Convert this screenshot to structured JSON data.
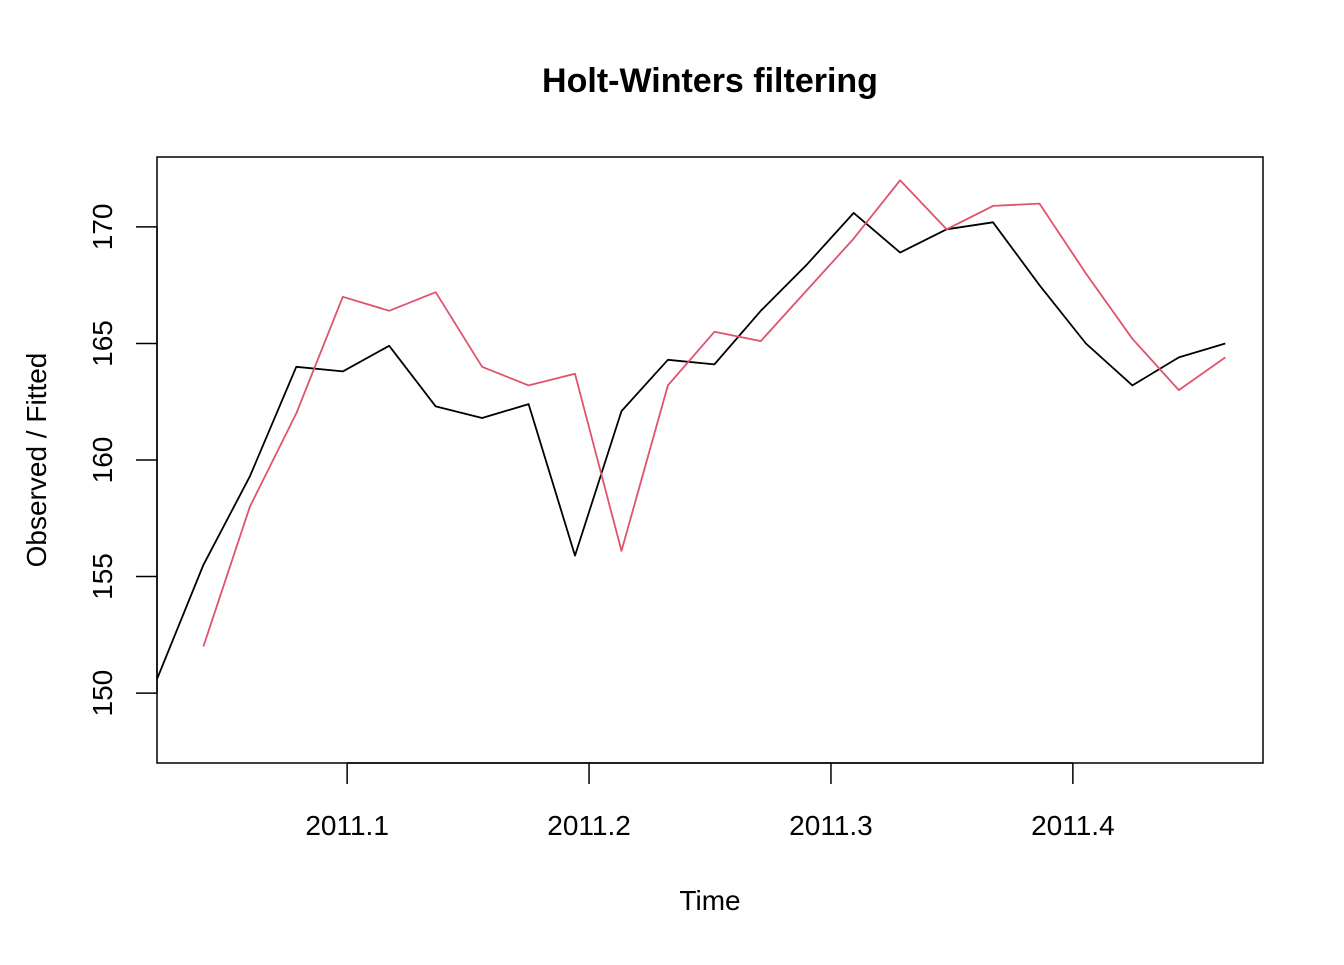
{
  "chart_data": {
    "type": "line",
    "title": "Holt-Winters filtering",
    "xlabel": "Time",
    "ylabel": "Observed / Fitted",
    "xlim": [
      2011.0214,
      2011.4786
    ],
    "ylim": [
      147.0,
      173.0
    ],
    "xticks": [
      2011.1,
      2011.2,
      2011.3,
      2011.4
    ],
    "xtick_labels": [
      "2011.1",
      "2011.2",
      "2011.3",
      "2011.4"
    ],
    "yticks": [
      150,
      155,
      160,
      165,
      170
    ],
    "ytick_labels": [
      "150",
      "155",
      "160",
      "165",
      "170"
    ],
    "grid": false,
    "legend": "none",
    "series": [
      {
        "color": "#000000",
        "x": [
          2011.0214,
          2011.0406,
          2011.0598,
          2011.079,
          2011.0982,
          2011.1174,
          2011.1366,
          2011.1558,
          2011.175,
          2011.1942,
          2011.2134,
          2011.2326,
          2011.2518,
          2011.271,
          2011.2902,
          2011.3094,
          2011.3286,
          2011.3478,
          2011.367,
          2011.3862,
          2011.4054,
          2011.4246,
          2011.4438,
          2011.463
        ],
        "values": [
          150.6,
          155.5,
          159.3,
          164.0,
          163.8,
          164.9,
          162.3,
          161.8,
          162.4,
          155.9,
          162.1,
          164.3,
          164.1,
          166.4,
          168.4,
          170.6,
          168.9,
          169.9,
          170.2,
          167.5,
          165.0,
          163.2,
          164.4,
          165.0
        ]
      },
      {
        "color": "#DF536B",
        "x": [
          2011.0406,
          2011.0598,
          2011.079,
          2011.0982,
          2011.1174,
          2011.1366,
          2011.1558,
          2011.175,
          2011.1942,
          2011.2134,
          2011.2326,
          2011.2518,
          2011.271,
          2011.2902,
          2011.3094,
          2011.3286,
          2011.3478,
          2011.367,
          2011.3862,
          2011.4054,
          2011.4246,
          2011.4438,
          2011.463
        ],
        "values": [
          152.0,
          158.0,
          162.0,
          167.0,
          166.4,
          167.2,
          164.0,
          163.2,
          163.7,
          156.1,
          163.2,
          165.5,
          165.1,
          167.3,
          169.5,
          172.0,
          169.9,
          170.9,
          171.0,
          168.0,
          165.2,
          163.0,
          164.4
        ]
      }
    ]
  }
}
